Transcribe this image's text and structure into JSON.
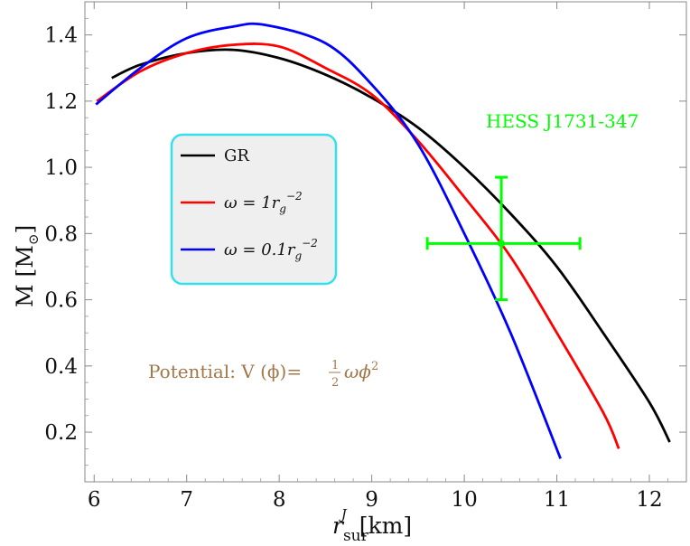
{
  "chart_data": {
    "type": "line",
    "xlabel": {
      "main": "r",
      "sub": "sur",
      "sup": "J",
      "unit": "[km]"
    },
    "ylabel": {
      "main": "M [M",
      "sub": "⊙",
      "close": "]"
    },
    "xlim": [
      5.9,
      12.4
    ],
    "ylim": [
      0.05,
      1.5
    ],
    "xticks": [
      6,
      7,
      8,
      9,
      10,
      11,
      12
    ],
    "yticks": [
      0.2,
      0.4,
      0.6,
      0.8,
      1.0,
      1.2,
      1.4
    ],
    "ytick_labels": [
      "0.2",
      "0.4",
      "0.6",
      "0.8",
      "1.0",
      "1.2",
      "1.4"
    ],
    "grid": false,
    "series": [
      {
        "name": "GR",
        "color": "#000000",
        "x": [
          6.19,
          6.5,
          7.0,
          7.5,
          8.0,
          8.5,
          9.0,
          9.5,
          10.0,
          10.5,
          11.0,
          11.5,
          12.0,
          12.22
        ],
        "y": [
          1.27,
          1.31,
          1.345,
          1.355,
          1.33,
          1.28,
          1.21,
          1.12,
          1.0,
          0.86,
          0.7,
          0.5,
          0.29,
          0.17
        ]
      },
      {
        "name": "ω = 1r_g^-2",
        "color": "#ff0000",
        "x": [
          6.03,
          6.5,
          7.0,
          7.5,
          8.0,
          8.5,
          9.0,
          9.5,
          10.0,
          10.5,
          11.0,
          11.5,
          11.67
        ],
        "y": [
          1.2,
          1.29,
          1.345,
          1.37,
          1.365,
          1.3,
          1.22,
          1.08,
          0.91,
          0.73,
          0.5,
          0.26,
          0.15
        ]
      },
      {
        "name": "ω = 0.1r_g^-2",
        "color": "#0000ff",
        "x": [
          6.02,
          6.5,
          7.0,
          7.5,
          7.85,
          8.5,
          9.0,
          9.5,
          10.0,
          10.5,
          11.04
        ],
        "y": [
          1.19,
          1.3,
          1.39,
          1.425,
          1.43,
          1.375,
          1.25,
          1.07,
          0.8,
          0.5,
          0.12
        ]
      }
    ],
    "data_point": {
      "label": "HESS J1731-347",
      "color": "#00ff00",
      "x": 10.4,
      "y": 0.77,
      "x_err": [
        9.6,
        11.25
      ],
      "y_err": [
        0.6,
        0.97
      ]
    },
    "legend": {
      "placement": "left-middle",
      "entries": [
        {
          "prefix": "GR",
          "value": "",
          "sup": ""
        },
        {
          "prefix": "ω = ",
          "value": "1r",
          "sub": "g",
          "sup": "−2"
        },
        {
          "prefix": "ω = ",
          "value": "0.1r",
          "sub": "g",
          "sup": "−2"
        }
      ]
    },
    "annotation": {
      "text": "Potential: V (ϕ)=",
      "frac_num": "1",
      "frac_den": "2",
      "tail": "ωϕ",
      "tail_sup": "2",
      "color": "#a0784a"
    }
  }
}
